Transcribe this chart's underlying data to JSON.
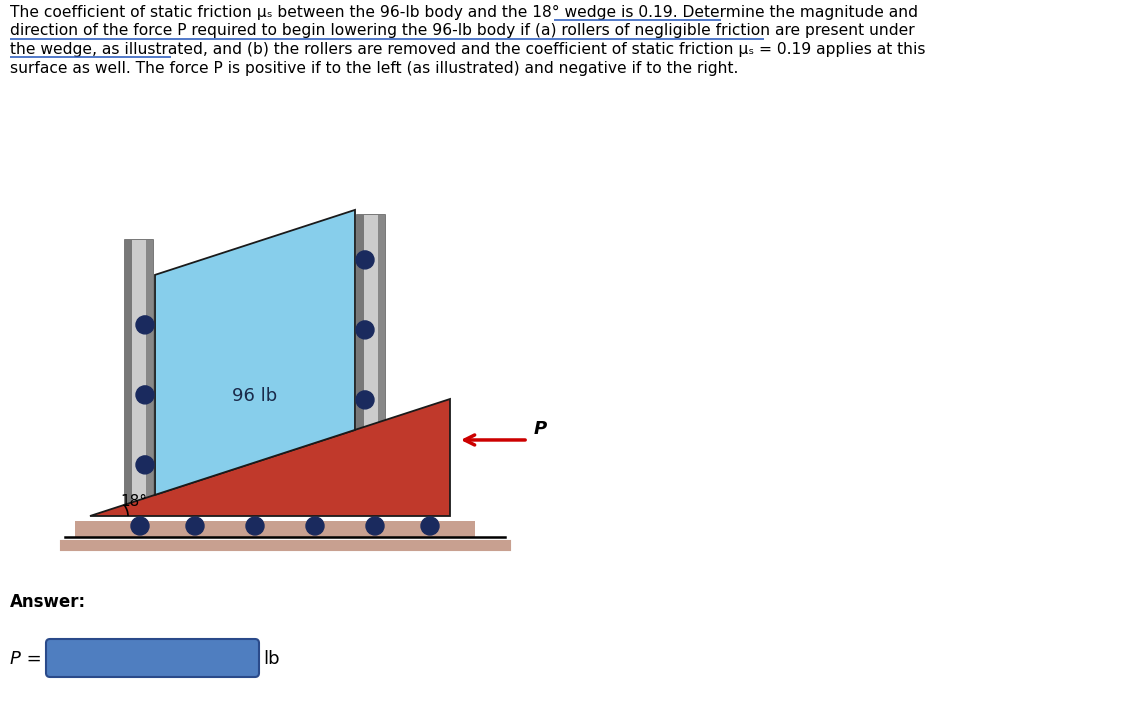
{
  "bg_color": "#ffffff",
  "wedge_color": "#c0392b",
  "block_color": "#87ceeb",
  "roller_color": "#1a2a5e",
  "rail_color": "#aaaaaa",
  "rail_dark": "#888888",
  "ground_color": "#c8a090",
  "ground_line_color": "#b08070",
  "arrow_color": "#cc0000",
  "answer_label": "Answer:",
  "p_label": "P =",
  "lb_label": "lb",
  "input_box_color": "#4f7ec0",
  "weight_label": "96 lb",
  "angle_label": "18°",
  "p_arrow_label": "P",
  "line_texts": [
    "The coefficient of static friction μₛ between the 96-lb body and the 18° wedge is 0.19. Determine the magnitude and",
    "direction of the force P required to begin lowering the 96-lb body if (a) rollers of negligible friction are present under",
    "the wedge, as illustrated, and (b) the rollers are removed and the coefficient of static friction μₛ = 0.19 applies at this",
    "surface as well. The force P is positive if to the left (as illustrated) and negative if to the right."
  ]
}
